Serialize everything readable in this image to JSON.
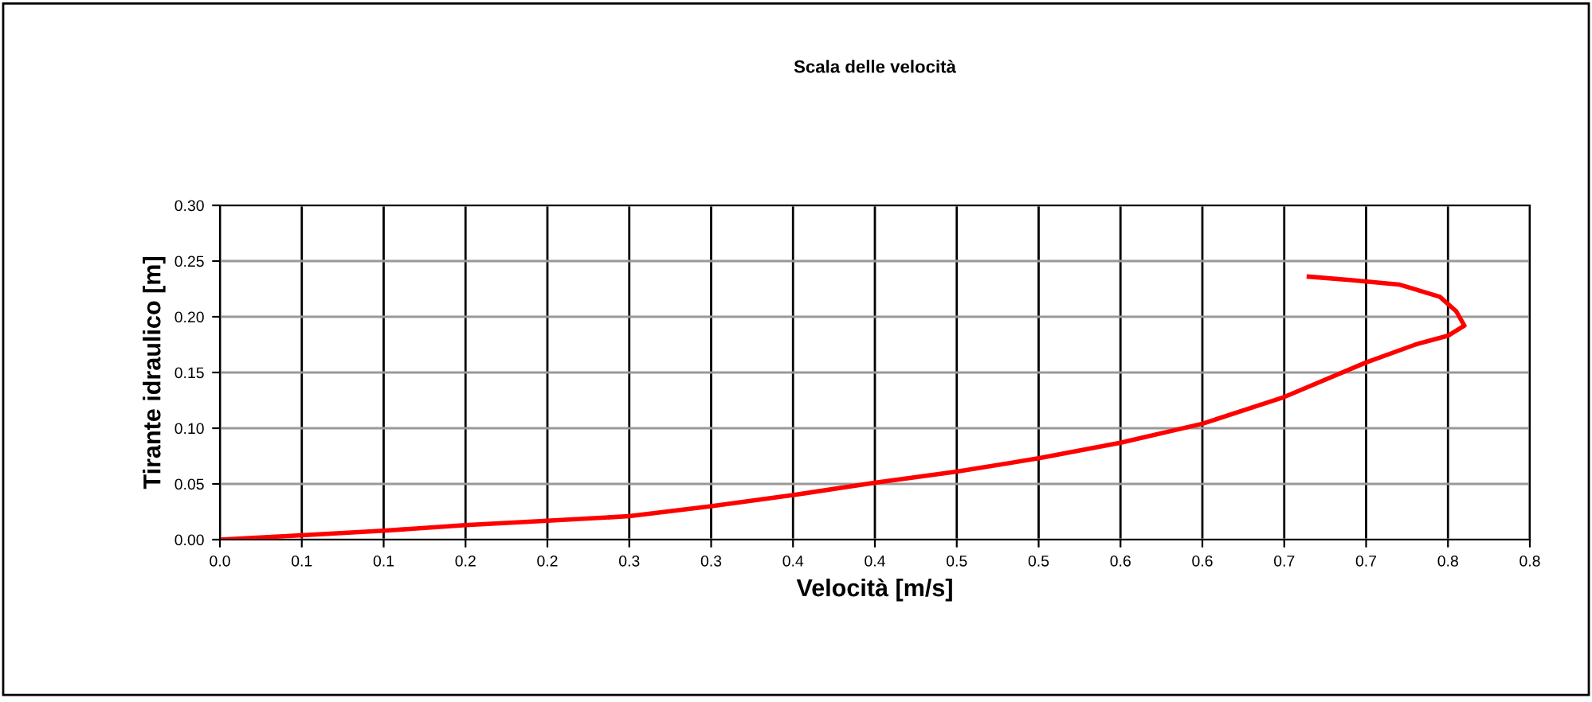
{
  "chart_data": {
    "type": "line",
    "title": "Scala delle velocità",
    "xlabel": "Velocità [m/s]",
    "ylabel": "Tirante idraulico [m]",
    "series": [
      {
        "color": "#ff0000",
        "x": [
          0,
          0.05,
          0.1,
          0.15,
          0.2,
          0.25,
          0.3,
          0.35,
          0.4,
          0.45,
          0.5,
          0.55,
          0.6,
          0.65,
          0.7,
          0.73,
          0.75,
          0.76,
          0.755,
          0.745,
          0.72,
          0.69,
          0.665
        ],
        "values": [
          0,
          0.004,
          0.008,
          0.013,
          0.017,
          0.021,
          0.03,
          0.04,
          0.051,
          0.061,
          0.073,
          0.087,
          0.104,
          0.128,
          0.159,
          0.175,
          0.183,
          0.192,
          0.205,
          0.218,
          0.229,
          0.233,
          0.236
        ]
      }
    ],
    "xlim": [
      0,
      0.8
    ],
    "ylim": [
      0,
      0.3
    ],
    "xticks": [
      {
        "value": 0,
        "label": "0.0"
      },
      {
        "value": 0.05,
        "label": "0.1"
      },
      {
        "value": 0.1,
        "label": "0.1"
      },
      {
        "value": 0.15,
        "label": "0.2"
      },
      {
        "value": 0.2,
        "label": "0.2"
      },
      {
        "value": 0.25,
        "label": "0.3"
      },
      {
        "value": 0.3,
        "label": "0.3"
      },
      {
        "value": 0.35,
        "label": "0.4"
      },
      {
        "value": 0.4,
        "label": "0.4"
      },
      {
        "value": 0.45,
        "label": "0.5"
      },
      {
        "value": 0.5,
        "label": "0.5"
      },
      {
        "value": 0.55,
        "label": "0.6"
      },
      {
        "value": 0.6,
        "label": "0.6"
      },
      {
        "value": 0.65,
        "label": "0.7"
      },
      {
        "value": 0.7,
        "label": "0.7"
      },
      {
        "value": 0.75,
        "label": "0.8"
      },
      {
        "value": 0.8,
        "label": "0.8"
      }
    ],
    "yticks": [
      {
        "value": 0,
        "label": "0.00"
      },
      {
        "value": 0.05,
        "label": "0.05"
      },
      {
        "value": 0.1,
        "label": "0.10"
      },
      {
        "value": 0.15,
        "label": "0.15"
      },
      {
        "value": 0.2,
        "label": "0.20"
      },
      {
        "value": 0.25,
        "label": "0.25"
      },
      {
        "value": 0.3,
        "label": "0.30"
      }
    ],
    "grid": true,
    "legend": false,
    "marker": "none",
    "line_style": "solid"
  }
}
